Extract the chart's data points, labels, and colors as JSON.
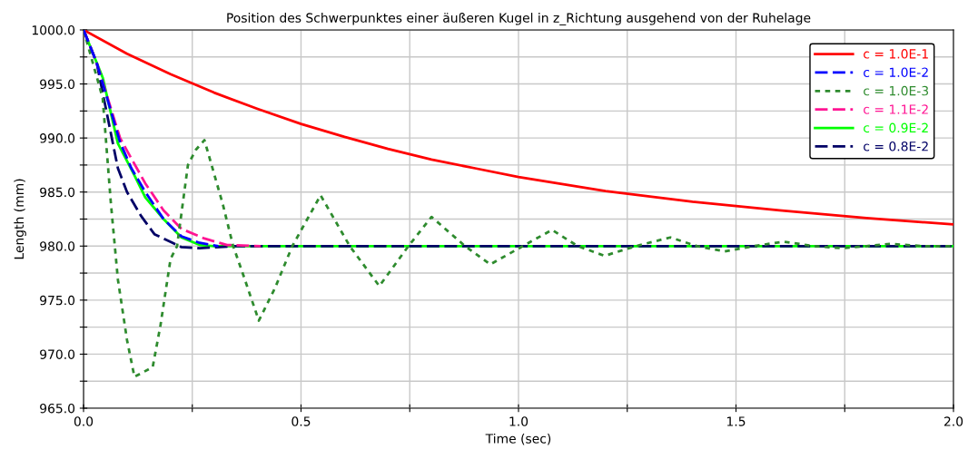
{
  "chart_data": {
    "type": "line",
    "title": "Position des Schwerpunktes einer äußeren Kugel in z_Richtung ausgehend von der Ruhelage",
    "xlabel": "Time (sec)",
    "ylabel": "Length (mm)",
    "xlim": [
      0,
      2.0
    ],
    "ylim": [
      965,
      1000
    ],
    "xticks": [
      {
        "value": 0,
        "label": "0.0"
      },
      {
        "value": 0.25,
        "label": null
      },
      {
        "value": 0.5,
        "label": "0.5"
      },
      {
        "value": 0.75,
        "label": null
      },
      {
        "value": 1.0,
        "label": "1.0"
      },
      {
        "value": 1.25,
        "label": null
      },
      {
        "value": 1.5,
        "label": "1.5"
      },
      {
        "value": 1.75,
        "label": null
      },
      {
        "value": 2.0,
        "label": "2.0"
      }
    ],
    "yticks": [
      {
        "value": 965,
        "label": "965.0"
      },
      {
        "value": 967.5,
        "label": null
      },
      {
        "value": 970,
        "label": "970.0"
      },
      {
        "value": 972.5,
        "label": null
      },
      {
        "value": 975,
        "label": "975.0"
      },
      {
        "value": 977.5,
        "label": null
      },
      {
        "value": 980,
        "label": "980.0"
      },
      {
        "value": 982.5,
        "label": null
      },
      {
        "value": 985,
        "label": "985.0"
      },
      {
        "value": 987.5,
        "label": null
      },
      {
        "value": 990,
        "label": "990.0"
      },
      {
        "value": 992.5,
        "label": null
      },
      {
        "value": 995,
        "label": "995.0"
      },
      {
        "value": 997.5,
        "label": null
      },
      {
        "value": 1000,
        "label": "1000.0"
      }
    ],
    "grid": true,
    "legend": "top right",
    "marker": "none",
    "series": [
      {
        "name": "c = 1.0E-1",
        "color": "#ff0000",
        "line_style": "solid",
        "x": [
          0,
          0.1,
          0.2,
          0.3,
          0.4,
          0.5,
          0.6,
          0.7,
          0.8,
          0.9,
          1.0,
          1.2,
          1.4,
          1.6,
          1.8,
          2.0
        ],
        "values": [
          1000,
          997.8,
          995.9,
          994.2,
          992.7,
          991.3,
          990.1,
          989.0,
          988.0,
          987.2,
          986.4,
          985.1,
          984.1,
          983.3,
          982.6,
          982.0
        ]
      },
      {
        "name": "c = 1.0E-2",
        "color": "#0000ff",
        "line_style": "dashed",
        "x": [
          0,
          0.03,
          0.084,
          0.11,
          0.142,
          0.184,
          0.225,
          0.267,
          0.31
        ],
        "values": [
          1000,
          997,
          989.6,
          987.2,
          985.0,
          982.5,
          980.9,
          980.3,
          980.0
        ]
      },
      {
        "name": "c = 1.0E-3",
        "color": "#2e8b2e",
        "line_style": "dotted",
        "x": [
          0,
          0.044,
          0.063,
          0.079,
          0.1,
          0.117,
          0.159,
          0.177,
          0.2,
          0.215,
          0.24,
          0.258,
          0.278,
          0.32,
          0.344,
          0.37,
          0.403,
          0.44,
          0.48,
          0.545,
          0.612,
          0.68,
          0.747,
          0.8,
          0.877,
          0.935,
          1.01,
          1.077,
          1.136,
          1.198,
          1.27,
          1.349,
          1.41,
          1.474,
          1.54,
          1.61,
          1.68,
          1.745,
          1.8,
          1.854,
          1.93,
          2.0
        ],
        "values": [
          1000,
          993.7,
          983.9,
          976.9,
          971.3,
          967.9,
          968.8,
          972.7,
          978.8,
          980,
          987.5,
          988.9,
          989.8,
          983.9,
          980,
          977,
          973.1,
          976.1,
          980,
          984.7,
          980,
          976.3,
          980,
          982.7,
          980,
          978.3,
          980,
          981.5,
          980,
          979.1,
          980,
          980.8,
          980,
          979.5,
          980,
          980.4,
          980,
          979.8,
          980,
          980.2,
          980,
          980
        ]
      },
      {
        "name": "c = 1.1E-2",
        "color": "#ff1493",
        "line_style": "dashed",
        "x": [
          0,
          0.03,
          0.084,
          0.11,
          0.142,
          0.184,
          0.225,
          0.278,
          0.33,
          0.407
        ],
        "values": [
          1000,
          997,
          990.0,
          988.1,
          985.8,
          983.3,
          981.6,
          980.7,
          980.1,
          980.0
        ]
      },
      {
        "name": "c = 0.9E-2",
        "color": "#00ff00",
        "line_style": "solid",
        "x": [
          0,
          0.044,
          0.079,
          0.115,
          0.142,
          0.184,
          0.225,
          0.267,
          0.3,
          2.0
        ],
        "values": [
          1000,
          995.6,
          989.5,
          986.7,
          984.5,
          982.5,
          980.8,
          980.1,
          980.0,
          980.0
        ]
      },
      {
        "name": "c = 0.8E-2",
        "color": "#000066",
        "line_style": "dashed",
        "x": [
          0,
          0.03,
          0.079,
          0.1,
          0.132,
          0.163,
          0.205,
          0.225,
          0.267,
          0.35,
          2.0
        ],
        "values": [
          1000,
          997,
          987.2,
          985.0,
          982.8,
          981.1,
          980.3,
          979.9,
          979.8,
          980.0,
          980.0
        ]
      }
    ]
  }
}
